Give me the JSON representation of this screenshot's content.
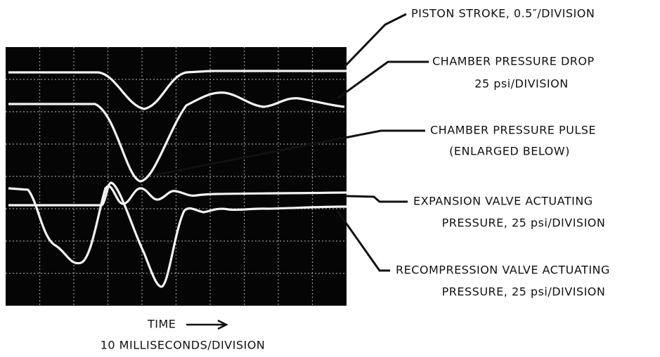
{
  "labels": {
    "piston": [
      "PISTON STROKE, 0.5″/DIVISION"
    ],
    "chamber_drop": [
      "CHAMBER PRESSURE DROP",
      "25 psi/DIVISION"
    ],
    "chamber_pulse": [
      "CHAMBER PRESSURE PULSE",
      "(ENLARGED BELOW)"
    ],
    "expansion": [
      "EXPANSION VALVE ACTUATING",
      "PRESSURE, 25 psi/DIVISION"
    ],
    "recompression": [
      "RECOMPRESSION VALVE ACTUATING",
      "PRESSURE, 25 psi/DIVISION"
    ]
  },
  "time_axis": {
    "label": "TIME",
    "scale": "10 MILLISECONDS/DIVISION"
  }
}
